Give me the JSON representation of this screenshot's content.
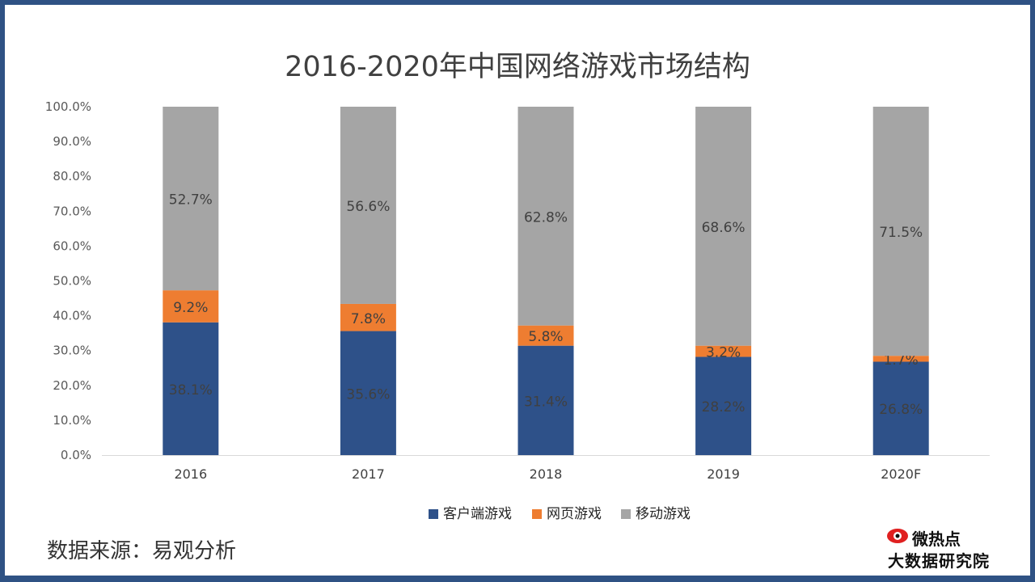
{
  "source_note": "数据来源：易观分析",
  "logo": {
    "line1": "微热点",
    "line2": "大数据研究院"
  },
  "chart_data": {
    "type": "bar",
    "stacked": true,
    "title": "2016-2020年中国网络游戏市场结构",
    "categories": [
      "2016",
      "2017",
      "2018",
      "2019",
      "2020F"
    ],
    "series": [
      {
        "name": "客户端游戏",
        "color": "#2e5189",
        "values": [
          38.1,
          35.6,
          31.4,
          28.2,
          26.8
        ],
        "labels": [
          "38.1%",
          "35.6%",
          "31.4%",
          "28.2%",
          "26.8%"
        ]
      },
      {
        "name": "网页游戏",
        "color": "#ee7d31",
        "values": [
          9.2,
          7.8,
          5.8,
          3.2,
          1.7
        ],
        "labels": [
          "9.2%",
          "7.8%",
          "5.8%",
          "3.2%",
          "1.7%"
        ]
      },
      {
        "name": "移动游戏",
        "color": "#a5a5a5",
        "values": [
          52.7,
          56.6,
          62.8,
          68.6,
          71.5
        ],
        "labels": [
          "52.7%",
          "56.6%",
          "62.8%",
          "68.6%",
          "71.5%"
        ]
      }
    ],
    "ylim": [
      0,
      100
    ],
    "yticks": [
      "0.0%",
      "10.0%",
      "20.0%",
      "30.0%",
      "40.0%",
      "50.0%",
      "60.0%",
      "70.0%",
      "80.0%",
      "90.0%",
      "100.0%"
    ],
    "legend_position": "bottom"
  }
}
